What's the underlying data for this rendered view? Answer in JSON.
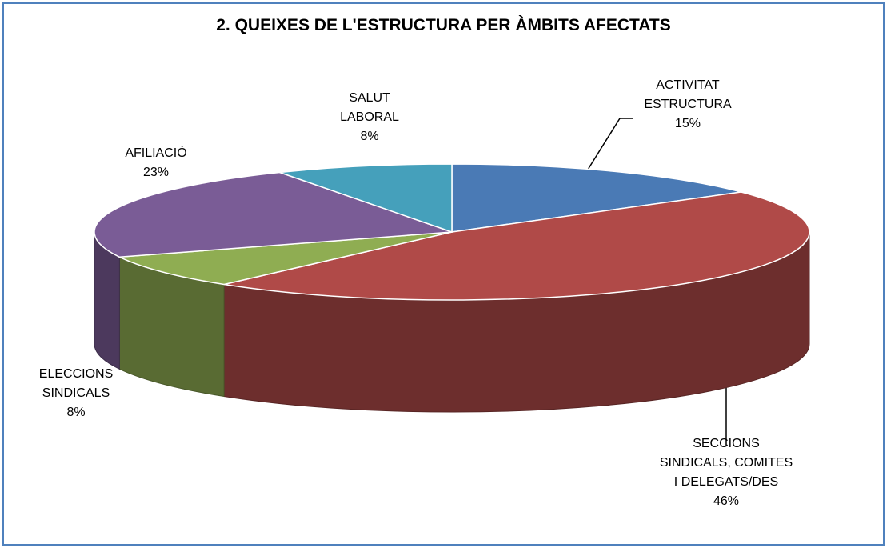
{
  "chart_data": {
    "type": "pie",
    "title": "2. QUEIXES DE L'ESTRUCTURA PER ÀMBITS AFECTATS",
    "categories": [
      "ACTIVITAT ESTRUCTURA",
      "SECCIONS SINDICALS, COMITES I DELEGATS/DES",
      "ELECCIONS SINDICALS",
      "AFILIACIÒ",
      "SALUT LABORAL"
    ],
    "values": [
      15,
      46,
      8,
      23,
      8
    ],
    "value_labels": [
      "15%",
      "46%",
      "8%",
      "23%",
      "8%"
    ],
    "colors": [
      "#4a7ab5",
      "#b04a48",
      "#8fad52",
      "#7a5c96",
      "#45a0bb"
    ]
  }
}
